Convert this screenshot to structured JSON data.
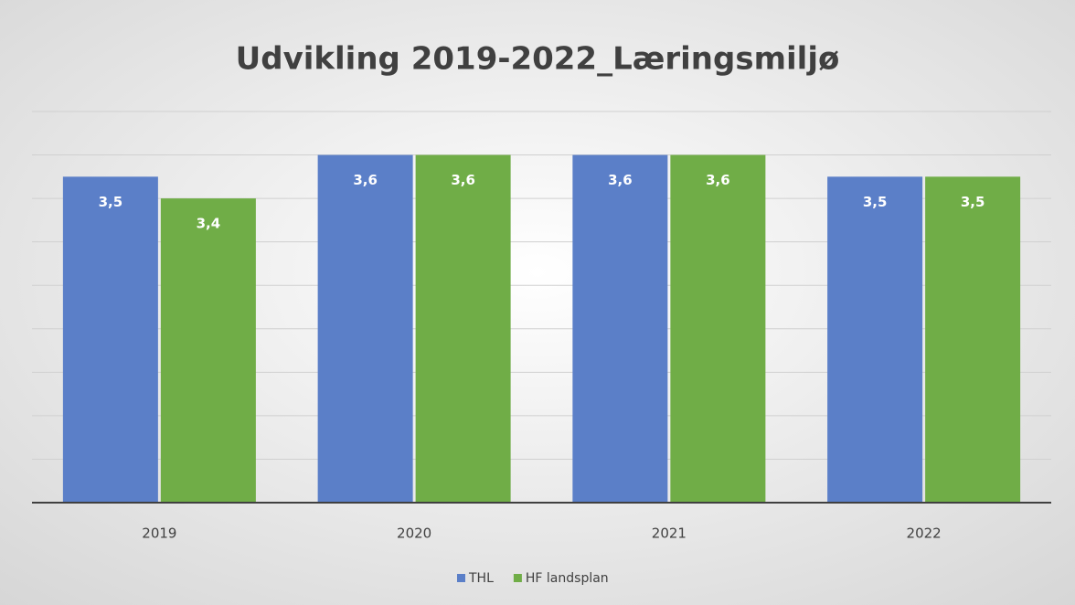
{
  "chart_data": {
    "type": "bar",
    "title": "Udvikling 2019-2022_Læringsmiljø",
    "categories": [
      "2019",
      "2020",
      "2021",
      "2022"
    ],
    "series": [
      {
        "name": "THL",
        "color": "#5b7fc8",
        "values": [
          3.5,
          3.6,
          3.6,
          3.5
        ],
        "value_labels": [
          "3,5",
          "3,6",
          "3,6",
          "3,5"
        ]
      },
      {
        "name": "HF landsplan",
        "color": "#70ad47",
        "values": [
          3.4,
          3.6,
          3.6,
          3.5
        ],
        "value_labels": [
          "3,4",
          "3,6",
          "3,6",
          "3,5"
        ]
      }
    ],
    "ylim": [
      2,
      3.8
    ],
    "yticks": [
      2,
      2.2,
      2.4,
      2.6,
      2.8,
      3,
      3.2,
      3.4,
      3.6,
      3.8
    ],
    "grid": true,
    "legend": "bottom"
  }
}
